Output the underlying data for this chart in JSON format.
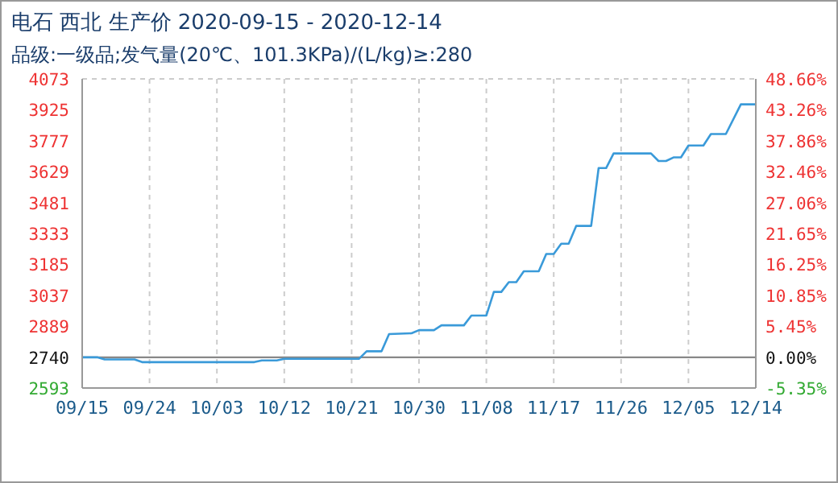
{
  "chart_data": {
    "type": "line",
    "title": "电石 西北 生产价 2020-09-15 - 2020-12-14",
    "subtitle": "品级:一级品;发气量(20℃、101.3KPa)/(L/kg)≥:280",
    "x": [
      "2020-09-15",
      "2020-09-17",
      "2020-09-18",
      "2020-09-22",
      "2020-09-23",
      "2020-10-08",
      "2020-10-09",
      "2020-10-11",
      "2020-10-12",
      "2020-10-22",
      "2020-10-23",
      "2020-10-25",
      "2020-10-26",
      "2020-10-29",
      "2020-10-30",
      "2020-11-01",
      "2020-11-02",
      "2020-11-05",
      "2020-11-06",
      "2020-11-08",
      "2020-11-09",
      "2020-11-10",
      "2020-11-11",
      "2020-11-12",
      "2020-11-13",
      "2020-11-15",
      "2020-11-16",
      "2020-11-17",
      "2020-11-18",
      "2020-11-19",
      "2020-11-20",
      "2020-11-22",
      "2020-11-23",
      "2020-11-24",
      "2020-11-25",
      "2020-11-30",
      "2020-12-01",
      "2020-12-02",
      "2020-12-03",
      "2020-12-04",
      "2020-12-05",
      "2020-12-07",
      "2020-12-08",
      "2020-12-10",
      "2020-12-12",
      "2020-12-14"
    ],
    "series": [
      {
        "color": "#3a9ad9",
        "values": [
          2740,
          2740,
          2730,
          2730,
          2717,
          2717,
          2725,
          2725,
          2733,
          2733,
          2769,
          2769,
          2851,
          2855,
          2870,
          2870,
          2893,
          2893,
          2940,
          2940,
          3053,
          3053,
          3100,
          3100,
          3152,
          3152,
          3235,
          3235,
          3284,
          3284,
          3369,
          3369,
          3646,
          3646,
          3716,
          3716,
          3680,
          3680,
          3697,
          3697,
          3754,
          3754,
          3809,
          3809,
          3951,
          3951
        ]
      }
    ],
    "xlim": [
      "2020-09-15",
      "2020-12-14"
    ],
    "xticks": [
      {
        "value": "2020-09-15",
        "label": "09/15"
      },
      {
        "value": "2020-09-24",
        "label": "09/24"
      },
      {
        "value": "2020-10-03",
        "label": "10/03"
      },
      {
        "value": "2020-10-12",
        "label": "10/12"
      },
      {
        "value": "2020-10-21",
        "label": "10/21"
      },
      {
        "value": "2020-10-30",
        "label": "10/30"
      },
      {
        "value": "2020-11-08",
        "label": "11/08"
      },
      {
        "value": "2020-11-17",
        "label": "11/17"
      },
      {
        "value": "2020-11-26",
        "label": "11/26"
      },
      {
        "value": "2020-12-05",
        "label": "12/05"
      },
      {
        "value": "2020-12-14",
        "label": "12/14"
      }
    ],
    "ylim": [
      2593,
      4073
    ],
    "yticks": [
      2593,
      2740,
      2889,
      3037,
      3185,
      3333,
      3481,
      3629,
      3777,
      3925,
      4073
    ],
    "y2lim": [
      -5.35,
      48.66
    ],
    "y2ticks": [
      {
        "value": -5.35,
        "label": "-5.35%"
      },
      {
        "value": 0,
        "label": "0.00%"
      },
      {
        "value": 5.45,
        "label": "5.45%"
      },
      {
        "value": 10.85,
        "label": "10.85%"
      },
      {
        "value": 16.25,
        "label": "16.25%"
      },
      {
        "value": 21.65,
        "label": "21.65%"
      },
      {
        "value": 27.06,
        "label": "27.06%"
      },
      {
        "value": 32.46,
        "label": "32.46%"
      },
      {
        "value": 37.86,
        "label": "37.86%"
      },
      {
        "value": 43.26,
        "label": "43.26%"
      },
      {
        "value": 48.66,
        "label": "48.66%"
      }
    ],
    "ref_lines": [
      {
        "axis": "y",
        "value": 2740,
        "color": "#888888"
      }
    ],
    "grid": true,
    "marker": "none",
    "line_style": "solid",
    "legend": false
  }
}
